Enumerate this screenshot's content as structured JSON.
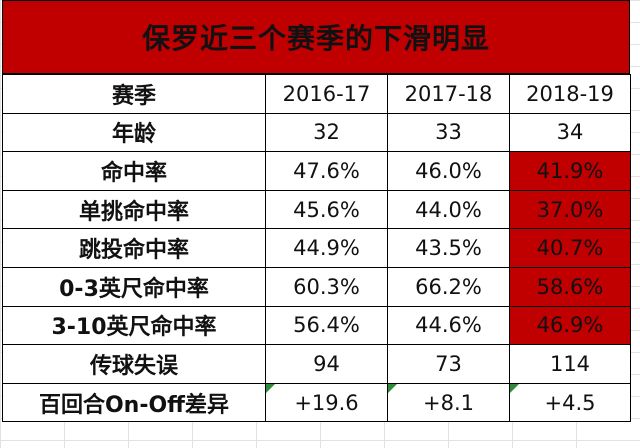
{
  "title": "保罗近三个赛季的下滑明显",
  "header": {
    "label": "赛季",
    "seasons": [
      "2016-17",
      "2017-18",
      "2018-19"
    ]
  },
  "rows": [
    {
      "label": "年龄",
      "values": [
        "32",
        "33",
        "34"
      ],
      "highlight": [
        false,
        false,
        false
      ]
    },
    {
      "label": "命中率",
      "values": [
        "47.6%",
        "46.0%",
        "41.9%"
      ],
      "highlight": [
        false,
        false,
        true
      ]
    },
    {
      "label": "单挑命中率",
      "values": [
        "45.6%",
        "44.0%",
        "37.0%"
      ],
      "highlight": [
        false,
        false,
        true
      ]
    },
    {
      "label": "跳投命中率",
      "values": [
        "44.9%",
        "43.5%",
        "40.7%"
      ],
      "highlight": [
        false,
        false,
        true
      ]
    },
    {
      "label": "0-3英尺命中率",
      "values": [
        "60.3%",
        "66.2%",
        "58.6%"
      ],
      "highlight": [
        false,
        false,
        true
      ]
    },
    {
      "label": "3-10英尺命中率",
      "values": [
        "56.4%",
        "44.6%",
        "46.9%"
      ],
      "highlight": [
        false,
        false,
        true
      ]
    },
    {
      "label": "传球失误",
      "values": [
        "94",
        "73",
        "114"
      ],
      "highlight": [
        false,
        false,
        false
      ]
    },
    {
      "label": "百回合On-Off差异",
      "values": [
        "+19.6",
        "+8.1",
        "+4.5"
      ],
      "highlight": [
        false,
        false,
        false
      ]
    }
  ],
  "colors": {
    "highlight": "#c00000",
    "title_bg": "#c00000",
    "flag": "#2e8b3a"
  }
}
